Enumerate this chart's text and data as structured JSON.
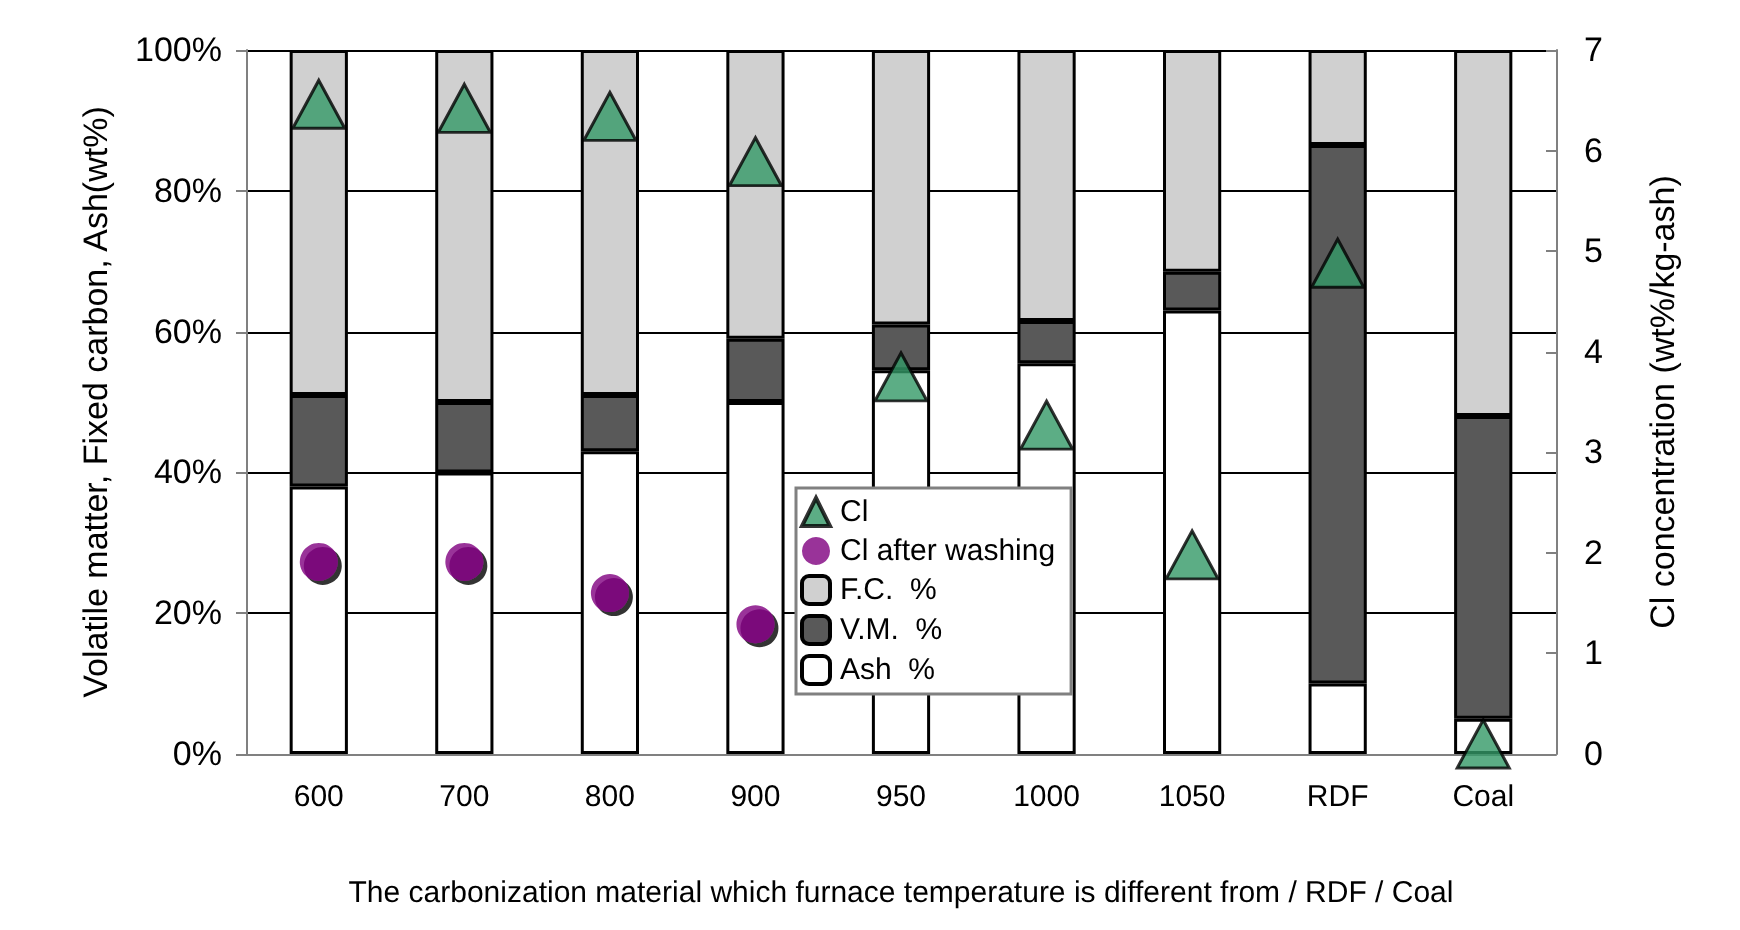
{
  "chart_data": {
    "type": "bar",
    "stacked": true,
    "xlabel": "The carbonization material which furnace temperature is different from / RDF / Coal",
    "ylabel": "Volatile matter, Fixed carbon, Ash(wt%)",
    "y2label": "Cl concentration (wt%/kg-ash)",
    "categories": [
      "600",
      "700",
      "800",
      "900",
      "950",
      "1000",
      "1050",
      "RDF",
      "Coal"
    ],
    "series": [
      {
        "name": "Ash  %",
        "color": "#ffffff",
        "values": [
          38,
          40,
          43,
          50,
          54.5,
          55.5,
          63,
          10,
          5
        ]
      },
      {
        "name": "V.M.  %",
        "color": "#595959",
        "values": [
          13,
          10,
          8,
          9,
          6.5,
          6,
          5.5,
          76.5,
          43
        ]
      },
      {
        "name": "F.C.  %",
        "color": "#d0d0d0",
        "values": [
          49,
          50,
          49,
          41,
          39,
          38.5,
          31.5,
          13.5,
          52
        ]
      },
      {
        "name": "Cl after washing",
        "type": "scatter",
        "axis": "y2",
        "marker": "circle",
        "color": "#800080",
        "values": [
          1.91,
          1.91,
          1.6,
          1.29,
          null,
          null,
          null,
          null,
          null
        ]
      },
      {
        "name": "Cl",
        "type": "scatter",
        "axis": "y2",
        "marker": "triangle",
        "color": "#339966",
        "values": [
          6.46,
          6.42,
          6.34,
          5.89,
          3.75,
          3.27,
          1.98,
          4.88,
          0.1
        ]
      }
    ],
    "ylim": [
      0,
      100
    ],
    "yticks": [
      {
        "value": 0,
        "label": "0%"
      },
      {
        "value": 20,
        "label": "20%"
      },
      {
        "value": 40,
        "label": "40%"
      },
      {
        "value": 60,
        "label": "60%"
      },
      {
        "value": 80,
        "label": "80%"
      },
      {
        "value": 100,
        "label": "100%"
      }
    ],
    "y2lim": [
      0,
      7
    ],
    "y2ticks": [
      0,
      1,
      2,
      3,
      4,
      5,
      6,
      7
    ],
    "grid": "y",
    "legend": "bottom"
  }
}
